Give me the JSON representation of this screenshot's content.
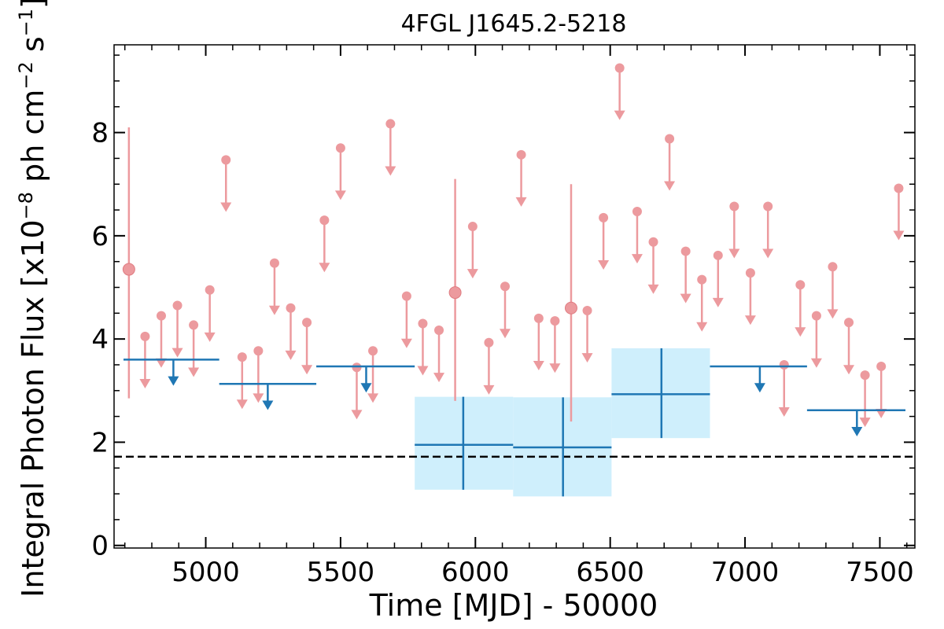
{
  "chart_data": {
    "type": "scatter",
    "title": "4FGL J1645.2-5218",
    "xlabel": "Time [MJD] - 50000",
    "ylabel": "Integral Photon Flux [x10",
    "ylabel_exp": "−8",
    "ylabel_mid": " ph cm",
    "ylabel_exp2": "−2",
    "ylabel_mid2": " s",
    "ylabel_exp3": "−1",
    "ylabel_end": "]",
    "xlim": [
      4660,
      7630
    ],
    "ylim": [
      -0.05,
      9.7
    ],
    "x_ticks": [
      5000,
      5500,
      6000,
      6500,
      7000,
      7500
    ],
    "y_ticks": [
      0,
      2,
      4,
      6,
      8
    ],
    "reference_line_y": 1.72,
    "colors": {
      "fine_bins": "#ec9a9e",
      "coarse_bins": "#1f77b4",
      "coarse_band": "#cfeffc",
      "reference": "#000000"
    },
    "fine_bin_detections": [
      {
        "x": 4715,
        "y": 5.35,
        "ylo": 2.85,
        "yhi": 8.1
      },
      {
        "x": 5925,
        "y": 4.9,
        "ylo": 2.8,
        "yhi": 7.1
      },
      {
        "x": 6355,
        "y": 4.6,
        "ylo": 2.4,
        "yhi": 7.0
      }
    ],
    "fine_bin_upper_limits": [
      {
        "x": 4775,
        "y": 4.05
      },
      {
        "x": 4835,
        "y": 4.45
      },
      {
        "x": 4895,
        "y": 4.65
      },
      {
        "x": 4955,
        "y": 4.27
      },
      {
        "x": 5015,
        "y": 4.95
      },
      {
        "x": 5075,
        "y": 7.47
      },
      {
        "x": 5135,
        "y": 3.65
      },
      {
        "x": 5195,
        "y": 3.77
      },
      {
        "x": 5255,
        "y": 5.47
      },
      {
        "x": 5315,
        "y": 4.6
      },
      {
        "x": 5375,
        "y": 4.32
      },
      {
        "x": 5440,
        "y": 6.3
      },
      {
        "x": 5500,
        "y": 7.7
      },
      {
        "x": 5560,
        "y": 3.45
      },
      {
        "x": 5620,
        "y": 3.77
      },
      {
        "x": 5685,
        "y": 8.17
      },
      {
        "x": 5745,
        "y": 4.83
      },
      {
        "x": 5805,
        "y": 4.3
      },
      {
        "x": 5865,
        "y": 4.17
      },
      {
        "x": 5990,
        "y": 6.18
      },
      {
        "x": 6050,
        "y": 3.93
      },
      {
        "x": 6110,
        "y": 5.02
      },
      {
        "x": 6170,
        "y": 7.57
      },
      {
        "x": 6235,
        "y": 4.4
      },
      {
        "x": 6295,
        "y": 4.35
      },
      {
        "x": 6415,
        "y": 4.55
      },
      {
        "x": 6475,
        "y": 6.35
      },
      {
        "x": 6535,
        "y": 9.25
      },
      {
        "x": 6600,
        "y": 6.47
      },
      {
        "x": 6660,
        "y": 5.88
      },
      {
        "x": 6720,
        "y": 7.88
      },
      {
        "x": 6780,
        "y": 5.7
      },
      {
        "x": 6840,
        "y": 5.15
      },
      {
        "x": 6900,
        "y": 5.62
      },
      {
        "x": 6960,
        "y": 6.57
      },
      {
        "x": 7020,
        "y": 5.28
      },
      {
        "x": 7085,
        "y": 6.57
      },
      {
        "x": 7145,
        "y": 3.5
      },
      {
        "x": 7205,
        "y": 5.05
      },
      {
        "x": 7265,
        "y": 4.45
      },
      {
        "x": 7325,
        "y": 5.4
      },
      {
        "x": 7385,
        "y": 4.32
      },
      {
        "x": 7445,
        "y": 3.3
      },
      {
        "x": 7505,
        "y": 3.47
      },
      {
        "x": 7570,
        "y": 6.92
      }
    ],
    "coarse_bin_upper_limits": [
      {
        "x0": 4695,
        "x1": 5050,
        "y": 3.6,
        "arrow_x": 4880
      },
      {
        "x0": 5050,
        "x1": 5410,
        "y": 3.13,
        "arrow_x": 5230
      },
      {
        "x0": 5410,
        "x1": 5775,
        "y": 3.47,
        "arrow_x": 5595
      },
      {
        "x0": 6870,
        "x1": 7230,
        "y": 3.47,
        "arrow_x": 7055
      },
      {
        "x0": 7230,
        "x1": 7595,
        "y": 2.62,
        "arrow_x": 7415
      }
    ],
    "coarse_bin_detections": [
      {
        "x0": 5775,
        "x1": 6140,
        "x": 5955,
        "y": 1.95,
        "ylo": 1.08,
        "yhi": 2.88
      },
      {
        "x0": 6140,
        "x1": 6505,
        "x": 6325,
        "y": 1.9,
        "ylo": 0.95,
        "yhi": 2.87
      },
      {
        "x0": 6505,
        "x1": 6870,
        "x": 6690,
        "y": 2.93,
        "ylo": 2.08,
        "yhi": 3.82
      }
    ]
  }
}
